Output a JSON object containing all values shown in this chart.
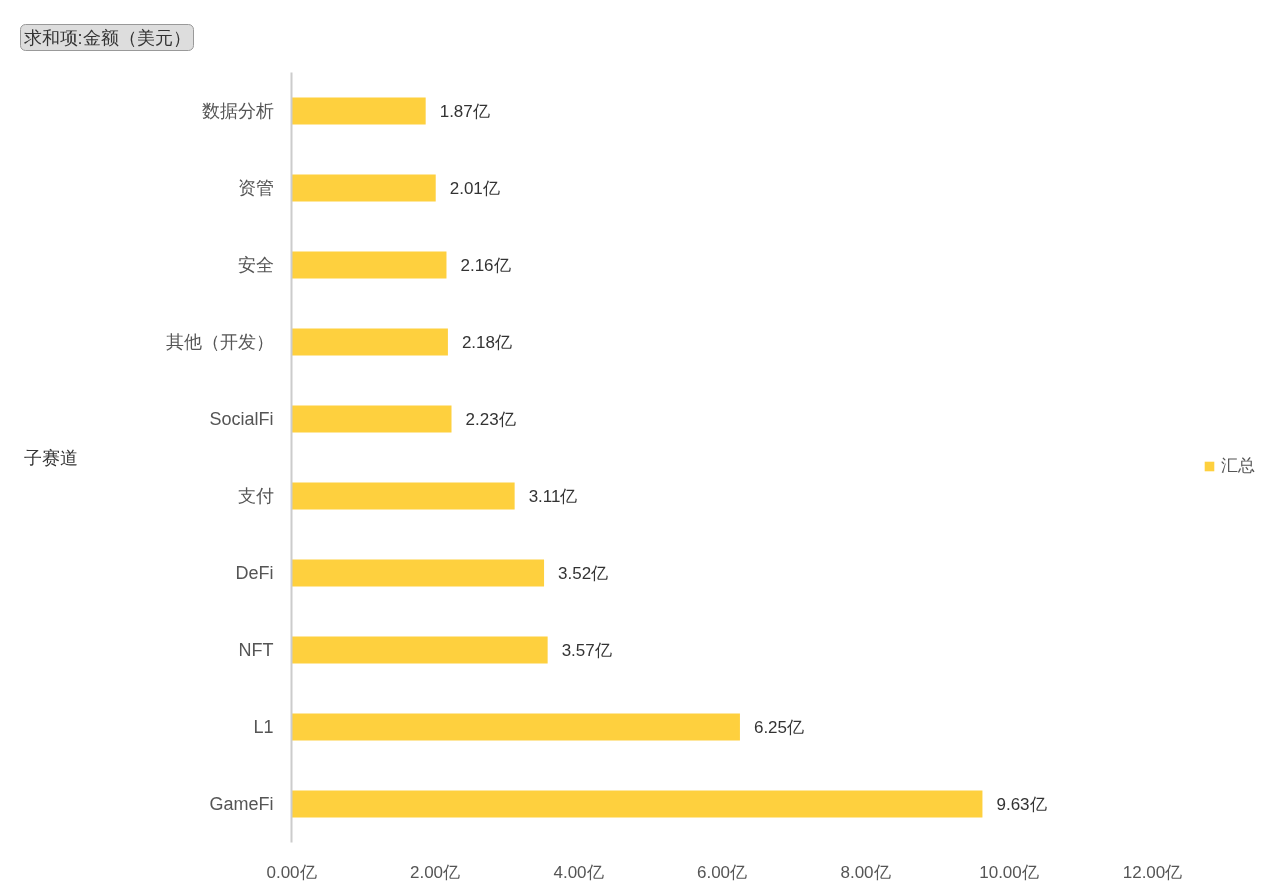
{
  "chart_data": {
    "type": "bar",
    "orientation": "horizontal",
    "title": "求和项:金额（美元）",
    "ylabel": "子赛道",
    "categories": [
      "数据分析",
      "资管",
      "安全",
      "其他（开发）",
      "SocialFi",
      "支付",
      "DeFi",
      "NFT",
      "L1",
      "GameFi"
    ],
    "series": [
      {
        "name": "汇总",
        "color": "#fed03e",
        "values": [
          1.87,
          2.01,
          2.16,
          2.18,
          2.23,
          3.11,
          3.52,
          3.57,
          6.25,
          9.63
        ],
        "value_labels": [
          "1.87亿",
          "2.01亿",
          "2.16亿",
          "2.18亿",
          "2.23亿",
          "3.11亿",
          "3.52亿",
          "3.57亿",
          "6.25亿",
          "9.63亿"
        ]
      }
    ],
    "xlim": [
      0,
      12
    ],
    "xticks": [
      {
        "value": 0,
        "label": "0.00亿"
      },
      {
        "value": 2,
        "label": "2.00亿"
      },
      {
        "value": 4,
        "label": "4.00亿"
      },
      {
        "value": 6,
        "label": "6.00亿"
      },
      {
        "value": 8,
        "label": "8.00亿"
      },
      {
        "value": 10,
        "label": "10.00亿"
      },
      {
        "value": 12,
        "label": "12.00亿"
      }
    ],
    "legend": "right"
  }
}
